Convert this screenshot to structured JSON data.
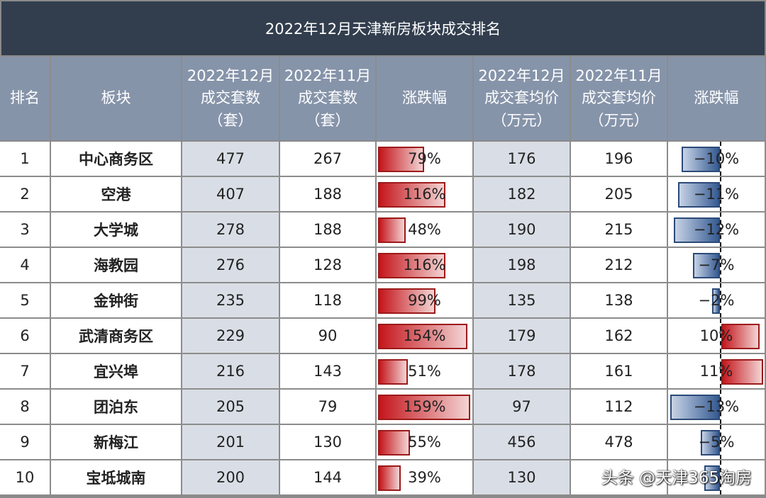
{
  "title": "2022年12月天津新房板块成交排名",
  "chart_data": {
    "type": "table",
    "columns": [
      "排名",
      "板块",
      "2022年12月\n成交套数\n（套）",
      "2022年11月\n成交套数\n（套）",
      "涨跌幅",
      "2022年12月\n成交套均价\n（万元）",
      "2022年11月\n成交套均价\n（万元）",
      "涨跌幅"
    ],
    "rows": [
      {
        "rank": "1",
        "area": "中心商务区",
        "dec_units": "477",
        "nov_units": "267",
        "unit_change": "79%",
        "unit_change_value": 79,
        "dec_price": "176",
        "nov_price": "196",
        "price_change": "−10%",
        "price_change_value": -10
      },
      {
        "rank": "2",
        "area": "空港",
        "dec_units": "407",
        "nov_units": "188",
        "unit_change": "116%",
        "unit_change_value": 116,
        "dec_price": "182",
        "nov_price": "205",
        "price_change": "−11%",
        "price_change_value": -11
      },
      {
        "rank": "3",
        "area": "大学城",
        "dec_units": "278",
        "nov_units": "188",
        "unit_change": "48%",
        "unit_change_value": 48,
        "dec_price": "190",
        "nov_price": "215",
        "price_change": "−12%",
        "price_change_value": -12
      },
      {
        "rank": "4",
        "area": "海教园",
        "dec_units": "276",
        "nov_units": "128",
        "unit_change": "116%",
        "unit_change_value": 116,
        "dec_price": "198",
        "nov_price": "212",
        "price_change": "−7%",
        "price_change_value": -7
      },
      {
        "rank": "5",
        "area": "金钟街",
        "dec_units": "235",
        "nov_units": "118",
        "unit_change": "99%",
        "unit_change_value": 99,
        "dec_price": "135",
        "nov_price": "138",
        "price_change": "−2%",
        "price_change_value": -2
      },
      {
        "rank": "6",
        "area": "武清商务区",
        "dec_units": "229",
        "nov_units": "90",
        "unit_change": "154%",
        "unit_change_value": 154,
        "dec_price": "179",
        "nov_price": "162",
        "price_change": "10%",
        "price_change_value": 10
      },
      {
        "rank": "7",
        "area": "宜兴埠",
        "dec_units": "216",
        "nov_units": "143",
        "unit_change": "51%",
        "unit_change_value": 51,
        "dec_price": "178",
        "nov_price": "161",
        "price_change": "11%",
        "price_change_value": 11
      },
      {
        "rank": "8",
        "area": "团泊东",
        "dec_units": "205",
        "nov_units": "79",
        "unit_change": "159%",
        "unit_change_value": 159,
        "dec_price": "97",
        "nov_price": "112",
        "price_change": "−13%",
        "price_change_value": -13
      },
      {
        "rank": "9",
        "area": "新梅江",
        "dec_units": "201",
        "nov_units": "130",
        "unit_change": "55%",
        "unit_change_value": 55,
        "dec_price": "456",
        "nov_price": "478",
        "price_change": "−5%",
        "price_change_value": -5
      },
      {
        "rank": "10",
        "area": "宝坻城南",
        "dec_units": "200",
        "nov_units": "144",
        "unit_change": "39%",
        "unit_change_value": 39,
        "dec_price": "130",
        "nov_price": null,
        "price_change": null,
        "price_change_value": -4
      }
    ]
  },
  "watermark": "头条 @天津365淘房"
}
